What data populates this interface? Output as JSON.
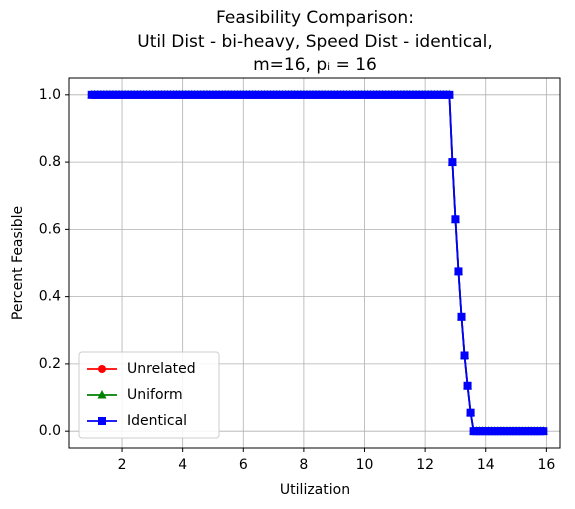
{
  "chart_data": {
    "type": "line",
    "title": [
      "Feasibility Comparison:",
      "Util Dist - bi-heavy, Speed Dist - identical,",
      "m=16, pᵢ = 16"
    ],
    "x_label": "Utilization",
    "y_label": "Percent Feasible",
    "x": [
      1,
      1.1,
      1.2,
      1.3,
      1.4,
      1.5,
      1.6,
      1.7,
      1.8,
      1.9,
      2,
      2.1,
      2.2,
      2.3,
      2.4,
      2.5,
      2.6,
      2.7,
      2.8,
      2.9,
      3,
      3.1,
      3.2,
      3.3,
      3.4,
      3.5,
      3.6,
      3.7,
      3.8,
      3.9,
      4,
      4.1,
      4.2,
      4.3,
      4.4,
      4.5,
      4.6,
      4.7,
      4.8,
      4.9,
      5,
      5.1,
      5.2,
      5.3,
      5.4,
      5.5,
      5.6,
      5.7,
      5.8,
      5.9,
      6,
      6.1,
      6.2,
      6.3,
      6.4,
      6.5,
      6.6,
      6.7,
      6.8,
      6.9,
      7,
      7.1,
      7.2,
      7.3,
      7.4,
      7.5,
      7.6,
      7.7,
      7.8,
      7.9,
      8,
      8.1,
      8.2,
      8.3,
      8.4,
      8.5,
      8.6,
      8.7,
      8.8,
      8.9,
      9,
      9.1,
      9.2,
      9.3,
      9.4,
      9.5,
      9.6,
      9.7,
      9.8,
      9.9,
      10,
      10.1,
      10.2,
      10.3,
      10.4,
      10.5,
      10.6,
      10.7,
      10.8,
      10.9,
      11,
      11.1,
      11.2,
      11.3,
      11.4,
      11.5,
      11.6,
      11.7,
      11.8,
      11.9,
      12,
      12.1,
      12.2,
      12.3,
      12.4,
      12.5,
      12.6,
      12.7,
      12.8,
      12.9,
      13,
      13.1,
      13.2,
      13.3,
      13.4,
      13.5,
      13.6,
      13.7,
      13.8,
      13.9,
      14,
      14.1,
      14.2,
      14.3,
      14.4,
      14.5,
      14.6,
      14.7,
      14.8,
      14.9,
      15,
      15.1,
      15.2,
      15.3,
      15.4,
      15.5,
      15.6,
      15.7,
      15.8,
      15.9
    ],
    "series": [
      {
        "name": "Unrelated",
        "color": "#ff0000",
        "marker": "circle",
        "values": [
          1,
          1,
          1,
          1,
          1,
          1,
          1,
          1,
          1,
          1,
          1,
          1,
          1,
          1,
          1,
          1,
          1,
          1,
          1,
          1,
          1,
          1,
          1,
          1,
          1,
          1,
          1,
          1,
          1,
          1,
          1,
          1,
          1,
          1,
          1,
          1,
          1,
          1,
          1,
          1,
          1,
          1,
          1,
          1,
          1,
          1,
          1,
          1,
          1,
          1,
          1,
          1,
          1,
          1,
          1,
          1,
          1,
          1,
          1,
          1,
          1,
          1,
          1,
          1,
          1,
          1,
          1,
          1,
          1,
          1,
          1,
          1,
          1,
          1,
          1,
          1,
          1,
          1,
          1,
          1,
          1,
          1,
          1,
          1,
          1,
          1,
          1,
          1,
          1,
          1,
          1,
          1,
          1,
          1,
          1,
          1,
          1,
          1,
          1,
          1,
          1,
          1,
          1,
          1,
          1,
          1,
          1,
          1,
          1,
          1,
          1,
          1,
          1,
          1,
          1,
          1,
          1,
          1,
          1,
          0.8,
          0.63,
          0.475,
          0.34,
          0.225,
          0.135,
          0.055,
          0,
          0,
          0,
          0,
          0,
          0,
          0,
          0,
          0,
          0,
          0,
          0,
          0,
          0,
          0,
          0,
          0,
          0,
          0,
          0,
          0,
          0,
          0,
          0
        ]
      },
      {
        "name": "Uniform",
        "color": "#008000",
        "marker": "triangle",
        "values": [
          1,
          1,
          1,
          1,
          1,
          1,
          1,
          1,
          1,
          1,
          1,
          1,
          1,
          1,
          1,
          1,
          1,
          1,
          1,
          1,
          1,
          1,
          1,
          1,
          1,
          1,
          1,
          1,
          1,
          1,
          1,
          1,
          1,
          1,
          1,
          1,
          1,
          1,
          1,
          1,
          1,
          1,
          1,
          1,
          1,
          1,
          1,
          1,
          1,
          1,
          1,
          1,
          1,
          1,
          1,
          1,
          1,
          1,
          1,
          1,
          1,
          1,
          1,
          1,
          1,
          1,
          1,
          1,
          1,
          1,
          1,
          1,
          1,
          1,
          1,
          1,
          1,
          1,
          1,
          1,
          1,
          1,
          1,
          1,
          1,
          1,
          1,
          1,
          1,
          1,
          1,
          1,
          1,
          1,
          1,
          1,
          1,
          1,
          1,
          1,
          1,
          1,
          1,
          1,
          1,
          1,
          1,
          1,
          1,
          1,
          1,
          1,
          1,
          1,
          1,
          1,
          1,
          1,
          1,
          0.8,
          0.63,
          0.475,
          0.34,
          0.225,
          0.135,
          0.055,
          0,
          0,
          0,
          0,
          0,
          0,
          0,
          0,
          0,
          0,
          0,
          0,
          0,
          0,
          0,
          0,
          0,
          0,
          0,
          0,
          0,
          0,
          0,
          0
        ]
      },
      {
        "name": "Identical",
        "color": "#0000ff",
        "marker": "square",
        "values": [
          1,
          1,
          1,
          1,
          1,
          1,
          1,
          1,
          1,
          1,
          1,
          1,
          1,
          1,
          1,
          1,
          1,
          1,
          1,
          1,
          1,
          1,
          1,
          1,
          1,
          1,
          1,
          1,
          1,
          1,
          1,
          1,
          1,
          1,
          1,
          1,
          1,
          1,
          1,
          1,
          1,
          1,
          1,
          1,
          1,
          1,
          1,
          1,
          1,
          1,
          1,
          1,
          1,
          1,
          1,
          1,
          1,
          1,
          1,
          1,
          1,
          1,
          1,
          1,
          1,
          1,
          1,
          1,
          1,
          1,
          1,
          1,
          1,
          1,
          1,
          1,
          1,
          1,
          1,
          1,
          1,
          1,
          1,
          1,
          1,
          1,
          1,
          1,
          1,
          1,
          1,
          1,
          1,
          1,
          1,
          1,
          1,
          1,
          1,
          1,
          1,
          1,
          1,
          1,
          1,
          1,
          1,
          1,
          1,
          1,
          1,
          1,
          1,
          1,
          1,
          1,
          1,
          1,
          1,
          0.8,
          0.63,
          0.475,
          0.34,
          0.225,
          0.135,
          0.055,
          0,
          0,
          0,
          0,
          0,
          0,
          0,
          0,
          0,
          0,
          0,
          0,
          0,
          0,
          0,
          0,
          0,
          0,
          0,
          0,
          0,
          0,
          0,
          0
        ]
      }
    ],
    "xlim": [
      0.25,
      16.45
    ],
    "ylim": [
      -0.05,
      1.05
    ],
    "xticks": [
      2,
      4,
      6,
      8,
      10,
      12,
      14,
      16
    ],
    "yticks": [
      {
        "value": 0,
        "label": "0.0"
      },
      0.2,
      0.4,
      0.6,
      0.8,
      {
        "value": 1,
        "label": "1.0"
      }
    ],
    "grid": true,
    "legend": "lower left"
  }
}
